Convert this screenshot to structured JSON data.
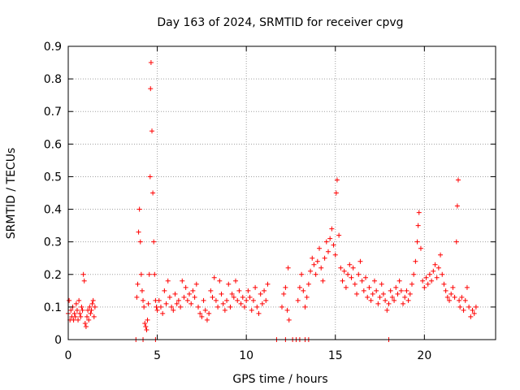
{
  "chart_data": {
    "type": "scatter",
    "title": "Day 163 of 2024, SRMTID for receiver cpvg",
    "xlabel": "GPS time / hours",
    "ylabel": "SRMTID / TECUs",
    "xlim": [
      0,
      24
    ],
    "ylim": [
      0,
      0.9
    ],
    "xticks": [
      0,
      5,
      10,
      15,
      20
    ],
    "xtick_labels": [
      "0",
      "5",
      "10",
      "15",
      "20"
    ],
    "yticks": [
      0,
      0.1,
      0.2,
      0.3,
      0.4,
      0.5,
      0.6,
      0.7,
      0.8,
      0.9
    ],
    "ytick_labels": [
      "0",
      "0.1",
      "0.2",
      "0.3",
      "0.4",
      "0.5",
      "0.6",
      "0.7",
      "0.8",
      "0.9"
    ],
    "grid": true,
    "marker": "+",
    "series": [
      {
        "name": "SRMTID",
        "color": "#ff0000",
        "points": [
          [
            0.0,
            0.08
          ],
          [
            0.05,
            0.12
          ],
          [
            0.1,
            0.06
          ],
          [
            0.15,
            0.09
          ],
          [
            0.2,
            0.07
          ],
          [
            0.25,
            0.1
          ],
          [
            0.3,
            0.06
          ],
          [
            0.35,
            0.08
          ],
          [
            0.4,
            0.07
          ],
          [
            0.45,
            0.11
          ],
          [
            0.5,
            0.09
          ],
          [
            0.55,
            0.06
          ],
          [
            0.6,
            0.12
          ],
          [
            0.65,
            0.08
          ],
          [
            0.7,
            0.07
          ],
          [
            0.75,
            0.1
          ],
          [
            0.8,
            0.09
          ],
          [
            0.85,
            0.2
          ],
          [
            0.9,
            0.18
          ],
          [
            0.95,
            0.05
          ],
          [
            1.0,
            0.04
          ],
          [
            1.05,
            0.07
          ],
          [
            1.1,
            0.09
          ],
          [
            1.15,
            0.06
          ],
          [
            1.2,
            0.1
          ],
          [
            1.25,
            0.08
          ],
          [
            1.3,
            0.09
          ],
          [
            1.35,
            0.11
          ],
          [
            1.4,
            0.12
          ],
          [
            1.45,
            0.07
          ],
          [
            1.5,
            0.1
          ],
          [
            3.85,
            0.13
          ],
          [
            3.9,
            0.17
          ],
          [
            3.95,
            0.33
          ],
          [
            4.0,
            0.4
          ],
          [
            4.05,
            0.3
          ],
          [
            4.1,
            0.2
          ],
          [
            4.15,
            0.15
          ],
          [
            4.2,
            0.12
          ],
          [
            4.25,
            0.1
          ],
          [
            4.3,
            0.05
          ],
          [
            4.35,
            0.04
          ],
          [
            4.4,
            0.03
          ],
          [
            4.45,
            0.06
          ],
          [
            4.5,
            0.11
          ],
          [
            4.55,
            0.2
          ],
          [
            4.6,
            0.5
          ],
          [
            4.62,
            0.77
          ],
          [
            4.65,
            0.85
          ],
          [
            4.7,
            0.64
          ],
          [
            4.75,
            0.45
          ],
          [
            4.8,
            0.3
          ],
          [
            4.85,
            0.2
          ],
          [
            4.9,
            0.12
          ],
          [
            4.95,
            0.1
          ],
          [
            5.0,
            0.09
          ],
          [
            5.1,
            0.12
          ],
          [
            5.2,
            0.1
          ],
          [
            5.3,
            0.08
          ],
          [
            5.4,
            0.15
          ],
          [
            5.5,
            0.11
          ],
          [
            5.6,
            0.18
          ],
          [
            5.7,
            0.13
          ],
          [
            5.8,
            0.1
          ],
          [
            5.9,
            0.09
          ],
          [
            6.0,
            0.14
          ],
          [
            6.1,
            0.11
          ],
          [
            6.2,
            0.12
          ],
          [
            6.3,
            0.1
          ],
          [
            6.4,
            0.18
          ],
          [
            6.5,
            0.13
          ],
          [
            6.6,
            0.16
          ],
          [
            6.7,
            0.12
          ],
          [
            6.8,
            0.14
          ],
          [
            6.9,
            0.11
          ],
          [
            7.0,
            0.15
          ],
          [
            7.1,
            0.13
          ],
          [
            7.2,
            0.17
          ],
          [
            7.3,
            0.1
          ],
          [
            7.4,
            0.08
          ],
          [
            7.5,
            0.07
          ],
          [
            7.6,
            0.12
          ],
          [
            7.7,
            0.09
          ],
          [
            7.8,
            0.06
          ],
          [
            7.9,
            0.08
          ],
          [
            8.0,
            0.15
          ],
          [
            8.1,
            0.13
          ],
          [
            8.2,
            0.19
          ],
          [
            8.3,
            0.12
          ],
          [
            8.4,
            0.1
          ],
          [
            8.5,
            0.18
          ],
          [
            8.6,
            0.14
          ],
          [
            8.7,
            0.11
          ],
          [
            8.8,
            0.09
          ],
          [
            8.9,
            0.12
          ],
          [
            9.0,
            0.17
          ],
          [
            9.1,
            0.1
          ],
          [
            9.2,
            0.14
          ],
          [
            9.3,
            0.13
          ],
          [
            9.4,
            0.18
          ],
          [
            9.5,
            0.12
          ],
          [
            9.6,
            0.15
          ],
          [
            9.7,
            0.11
          ],
          [
            9.8,
            0.13
          ],
          [
            9.9,
            0.1
          ],
          [
            10.0,
            0.12
          ],
          [
            10.1,
            0.15
          ],
          [
            10.2,
            0.13
          ],
          [
            10.3,
            0.09
          ],
          [
            10.4,
            0.12
          ],
          [
            10.5,
            0.16
          ],
          [
            10.6,
            0.1
          ],
          [
            10.7,
            0.08
          ],
          [
            10.8,
            0.14
          ],
          [
            10.9,
            0.11
          ],
          [
            11.0,
            0.15
          ],
          [
            11.1,
            0.12
          ],
          [
            11.2,
            0.17
          ],
          [
            12.0,
            0.1
          ],
          [
            12.1,
            0.14
          ],
          [
            12.2,
            0.16
          ],
          [
            12.3,
            0.09
          ],
          [
            12.35,
            0.22
          ],
          [
            12.4,
            0.06
          ],
          [
            12.9,
            0.12
          ],
          [
            13.0,
            0.16
          ],
          [
            13.1,
            0.2
          ],
          [
            13.2,
            0.15
          ],
          [
            13.3,
            0.1
          ],
          [
            13.4,
            0.13
          ],
          [
            13.5,
            0.17
          ],
          [
            13.6,
            0.21
          ],
          [
            13.7,
            0.25
          ],
          [
            13.8,
            0.23
          ],
          [
            13.9,
            0.2
          ],
          [
            14.0,
            0.24
          ],
          [
            14.1,
            0.28
          ],
          [
            14.2,
            0.22
          ],
          [
            14.3,
            0.18
          ],
          [
            14.4,
            0.25
          ],
          [
            14.5,
            0.3
          ],
          [
            14.6,
            0.27
          ],
          [
            14.7,
            0.31
          ],
          [
            14.8,
            0.34
          ],
          [
            14.9,
            0.29
          ],
          [
            15.0,
            0.26
          ],
          [
            15.05,
            0.45
          ],
          [
            15.1,
            0.49
          ],
          [
            15.2,
            0.32
          ],
          [
            15.3,
            0.22
          ],
          [
            15.4,
            0.18
          ],
          [
            15.5,
            0.21
          ],
          [
            15.6,
            0.16
          ],
          [
            15.7,
            0.2
          ],
          [
            15.8,
            0.23
          ],
          [
            15.9,
            0.19
          ],
          [
            16.0,
            0.22
          ],
          [
            16.1,
            0.17
          ],
          [
            16.2,
            0.14
          ],
          [
            16.3,
            0.2
          ],
          [
            16.4,
            0.24
          ],
          [
            16.5,
            0.18
          ],
          [
            16.6,
            0.15
          ],
          [
            16.7,
            0.19
          ],
          [
            16.8,
            0.13
          ],
          [
            16.9,
            0.16
          ],
          [
            17.0,
            0.12
          ],
          [
            17.1,
            0.14
          ],
          [
            17.2,
            0.18
          ],
          [
            17.3,
            0.15
          ],
          [
            17.4,
            0.11
          ],
          [
            17.5,
            0.13
          ],
          [
            17.6,
            0.17
          ],
          [
            17.7,
            0.14
          ],
          [
            17.8,
            0.12
          ],
          [
            17.9,
            0.09
          ],
          [
            18.0,
            0.11
          ],
          [
            18.1,
            0.15
          ],
          [
            18.2,
            0.13
          ],
          [
            18.3,
            0.12
          ],
          [
            18.4,
            0.16
          ],
          [
            18.5,
            0.14
          ],
          [
            18.6,
            0.18
          ],
          [
            18.7,
            0.15
          ],
          [
            18.8,
            0.11
          ],
          [
            18.9,
            0.13
          ],
          [
            19.0,
            0.15
          ],
          [
            19.1,
            0.12
          ],
          [
            19.2,
            0.14
          ],
          [
            19.3,
            0.17
          ],
          [
            19.4,
            0.2
          ],
          [
            19.5,
            0.24
          ],
          [
            19.6,
            0.3
          ],
          [
            19.65,
            0.35
          ],
          [
            19.7,
            0.39
          ],
          [
            19.8,
            0.28
          ],
          [
            19.9,
            0.18
          ],
          [
            20.0,
            0.16
          ],
          [
            20.1,
            0.19
          ],
          [
            20.2,
            0.17
          ],
          [
            20.3,
            0.2
          ],
          [
            20.4,
            0.18
          ],
          [
            20.5,
            0.21
          ],
          [
            20.6,
            0.23
          ],
          [
            20.7,
            0.19
          ],
          [
            20.8,
            0.22
          ],
          [
            20.9,
            0.26
          ],
          [
            21.0,
            0.2
          ],
          [
            21.1,
            0.17
          ],
          [
            21.2,
            0.15
          ],
          [
            21.3,
            0.13
          ],
          [
            21.4,
            0.12
          ],
          [
            21.5,
            0.14
          ],
          [
            21.6,
            0.16
          ],
          [
            21.7,
            0.13
          ],
          [
            21.8,
            0.3
          ],
          [
            21.85,
            0.41
          ],
          [
            21.9,
            0.49
          ],
          [
            21.95,
            0.12
          ],
          [
            22.0,
            0.1
          ],
          [
            22.1,
            0.13
          ],
          [
            22.2,
            0.09
          ],
          [
            22.3,
            0.12
          ],
          [
            22.4,
            0.16
          ],
          [
            22.5,
            0.1
          ],
          [
            22.6,
            0.07
          ],
          [
            22.7,
            0.09
          ],
          [
            22.8,
            0.08
          ],
          [
            22.9,
            0.1
          ],
          [
            3.8,
            0.0
          ],
          [
            4.2,
            0.0
          ],
          [
            4.9,
            0.0
          ],
          [
            11.7,
            0.0
          ],
          [
            12.2,
            0.0
          ],
          [
            12.6,
            0.0
          ],
          [
            12.8,
            0.0
          ],
          [
            13.0,
            0.0
          ],
          [
            13.3,
            0.0
          ],
          [
            13.5,
            0.0
          ],
          [
            18.0,
            0.0
          ]
        ]
      }
    ]
  }
}
